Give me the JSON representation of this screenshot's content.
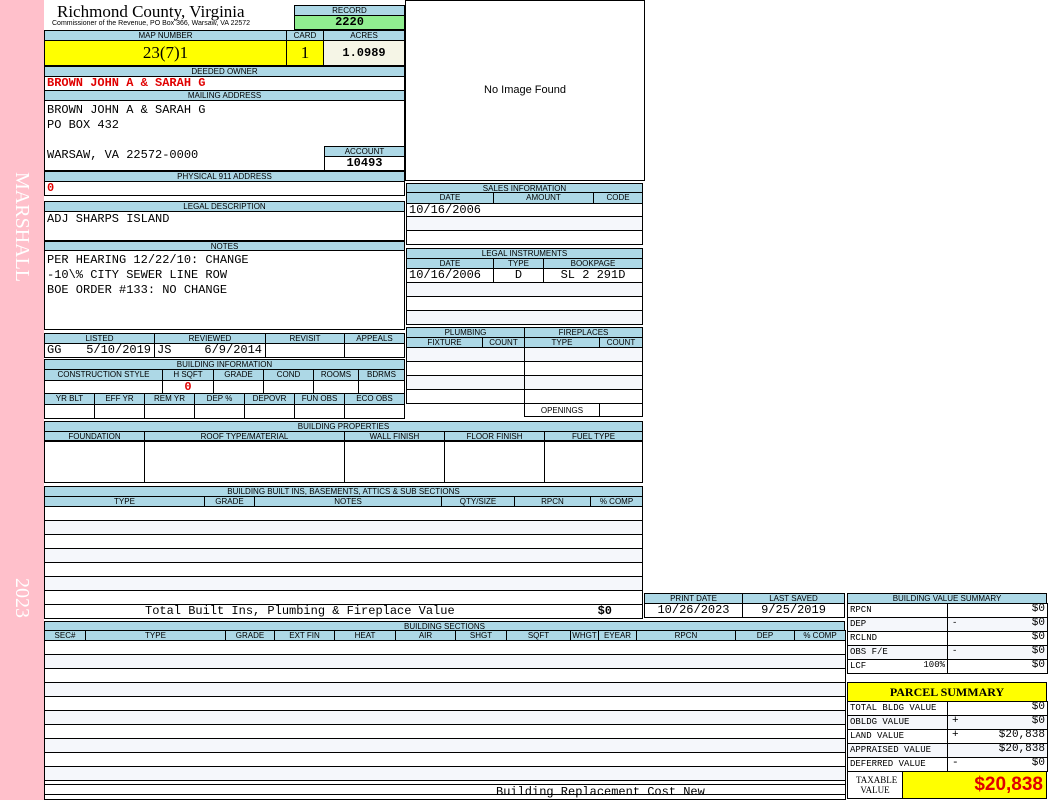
{
  "side": {
    "name": "MARSHALL",
    "year": "2023"
  },
  "header": {
    "title": "Richmond County, Virginia",
    "subtitle": "Commissioner of the Revenue, PO Box 366, Warsaw, VA 22572",
    "record_label": "RECORD",
    "record": "2220"
  },
  "map": {
    "map_label": "MAP NUMBER",
    "map_number": "23(7)1",
    "card_label": "CARD",
    "card": "1",
    "acres_label": "ACRES",
    "acres": "1.0989"
  },
  "image": {
    "text": "No Image Found"
  },
  "owner": {
    "label": "DEEDED OWNER",
    "value": "BROWN JOHN A & SARAH G"
  },
  "mailing": {
    "label": "MAILING ADDRESS",
    "lines": [
      "BROWN JOHN A & SARAH G",
      "PO BOX 432",
      "",
      "WARSAW, VA 22572-0000"
    ],
    "account_label": "ACCOUNT",
    "account": "10493"
  },
  "physical": {
    "label": "PHYSICAL 911 ADDRESS",
    "value": "0"
  },
  "legal": {
    "label": "LEGAL DESCRIPTION",
    "value": "ADJ SHARPS ISLAND"
  },
  "notes": {
    "label": "NOTES",
    "lines": [
      "PER HEARING 12/22/10: CHANGE",
      "-10\\% CITY SEWER LINE ROW",
      "BOE ORDER #133: NO CHANGE"
    ]
  },
  "review": {
    "listed_label": "LISTED",
    "listed_by": "GG",
    "listed_date": "5/10/2019",
    "reviewed_label": "REVIEWED",
    "reviewed_by": "JS",
    "reviewed_date": "6/9/2014",
    "revisit_label": "REVISIT",
    "appeals_label": "APPEALS"
  },
  "building_info": {
    "label": "BUILDING INFORMATION",
    "row1": [
      "CONSTRUCTION STYLE",
      "H SQFT",
      "GRADE",
      "COND",
      "ROOMS",
      "BDRMS"
    ],
    "hsqft": "0",
    "row2": [
      "YR BLT",
      "EFF YR",
      "REM YR",
      "DEP %",
      "DEPOVR",
      "FUN OBS",
      "ECO OBS"
    ]
  },
  "sales": {
    "label": "SALES INFORMATION",
    "cols": [
      "DATE",
      "AMOUNT",
      "CODE"
    ],
    "date": "10/16/2006"
  },
  "instruments": {
    "label": "LEGAL INSTRUMENTS",
    "cols": [
      "DATE",
      "TYPE",
      "BOOKPAGE"
    ],
    "date": "10/16/2006",
    "type": "D",
    "bookpage": "SL 2 291D"
  },
  "plumbing": {
    "label": "PLUMBING",
    "cols": [
      "FIXTURE",
      "COUNT"
    ]
  },
  "fireplaces": {
    "label": "FIREPLACES",
    "cols": [
      "TYPE",
      "COUNT"
    ],
    "openings": "OPENINGS"
  },
  "properties": {
    "label": "BUILDING PROPERTIES",
    "cols": [
      "FOUNDATION",
      "ROOF TYPE/MATERIAL",
      "WALL FINISH",
      "FLOOR FINISH",
      "FUEL TYPE"
    ]
  },
  "builtins": {
    "label": "BUILDING BUILT INS, BASEMENTS, ATTICS & SUB SECTIONS",
    "cols": [
      "TYPE",
      "GRADE",
      "NOTES",
      "QTY/SIZE",
      "RPCN",
      "% COMP"
    ],
    "total_label": "Total Built Ins, Plumbing & Fireplace Value",
    "total": "$0"
  },
  "dates": {
    "print_label": "PRINT DATE",
    "print": "10/26/2023",
    "saved_label": "LAST SAVED",
    "saved": "9/25/2019"
  },
  "sections": {
    "label": "BUILDING SECTIONS",
    "cols": [
      "SEC#",
      "TYPE",
      "GRADE",
      "EXT FIN",
      "HEAT",
      "AIR",
      "SHGT",
      "SQFT",
      "WHGT",
      "EYEAR",
      "RPCN",
      "DEP",
      "% COMP"
    ],
    "footer": "Building Replacement Cost New"
  },
  "bvs": {
    "label": "BUILDING VALUE SUMMARY",
    "rows": [
      {
        "l": "RPCN",
        "s": "",
        "v": "$0"
      },
      {
        "l": "DEP",
        "s": "-",
        "v": "$0"
      },
      {
        "l": "RCLND",
        "s": "",
        "v": "$0"
      },
      {
        "l": "OBS F/E",
        "s": "-",
        "v": "$0"
      },
      {
        "l": "LCF",
        "p": "100%",
        "s": "",
        "v": "$0"
      }
    ]
  },
  "parcel": {
    "title": "PARCEL SUMMARY",
    "rows": [
      {
        "l": "TOTAL BLDG VALUE",
        "s": "",
        "v": "$0"
      },
      {
        "l": "OBLDG VALUE",
        "s": "+",
        "v": "$0"
      },
      {
        "l": "LAND VALUE",
        "s": "+",
        "v": "$20,838"
      },
      {
        "l": "APPRAISED VALUE",
        "s": "",
        "v": "$20,838"
      },
      {
        "l": "DEFERRED VALUE",
        "s": "-",
        "v": "$0"
      }
    ],
    "taxable_label": "TAXABLE VALUE",
    "taxable": "$20,838"
  },
  "colors": {
    "header_blue": "#add8e6",
    "record_green": "#90ee90",
    "highlight_yellow": "#ffff00",
    "side_pink": "#ffc0cb",
    "value_red": "#e00000"
  }
}
